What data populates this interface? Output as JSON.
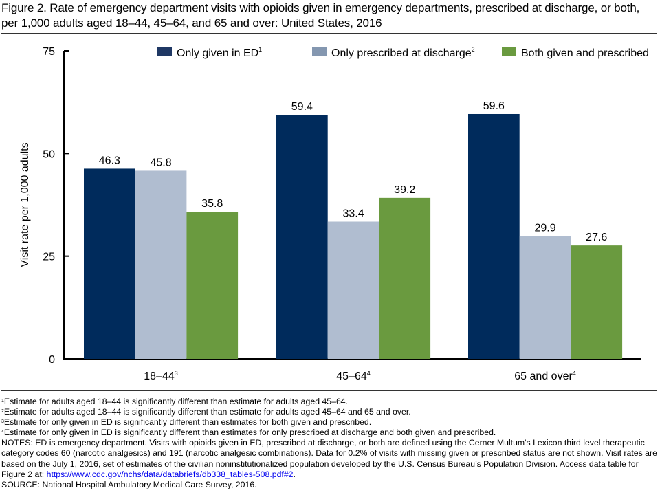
{
  "figure": {
    "title": "Figure 2. Rate of emergency department visits with opioids given in emergency departments, prescribed at discharge, or both, per 1,000 adults aged 18–44, 45–64, and 65 and over: United States, 2016"
  },
  "chart_data": {
    "type": "bar",
    "title": "Figure 2. Rate of emergency department visits with opioids given in emergency departments, prescribed at discharge, or both, per 1,000 adults aged 18–44, 45–64, and 65 and over: United States, 2016",
    "xlabel": "",
    "ylabel": "Visit rate per 1,000 adults",
    "ylim": [
      0,
      75
    ],
    "yticks": [
      0,
      25,
      50,
      75
    ],
    "grid": false,
    "legend_position": "top-right",
    "categories": [
      {
        "label": "18–44",
        "sup": "3"
      },
      {
        "label": "45–64",
        "sup": "4"
      },
      {
        "label": "65 and over",
        "sup": "4"
      }
    ],
    "series": [
      {
        "name": "Only given in ED",
        "sup": "1",
        "color": "#002B5C",
        "legend_color": "#1F3864",
        "values": [
          46.3,
          59.4,
          59.6
        ]
      },
      {
        "name": "Only prescribed at discharge",
        "sup": "2",
        "color": "#B0BDD0",
        "legend_color": "#8497B0",
        "values": [
          45.8,
          33.4,
          29.9
        ]
      },
      {
        "name": "Both given and prescribed",
        "sup": "",
        "color": "#6A9A3F",
        "legend_color": "#6A9A3F",
        "values": [
          35.8,
          39.2,
          27.6
        ]
      }
    ],
    "data_labels": [
      [
        "46.3",
        "59.4",
        "59.6"
      ],
      [
        "45.8",
        "33.4",
        "29.9"
      ],
      [
        "35.8",
        "39.2",
        "27.6"
      ]
    ]
  },
  "notes": {
    "footnotes": [
      {
        "sup": "1",
        "text": "Estimate for adults aged 18–44 is significantly different than estimate for adults aged 45–64."
      },
      {
        "sup": "2",
        "text": "Estimate for adults aged 18–44 is significantly different than estimate for adults aged 45–64 and 65 and over."
      },
      {
        "sup": "3",
        "text": "Estimate for only given in ED is significantly different than estimates for both given and prescribed."
      },
      {
        "sup": "4",
        "text": "Estimate for only given in ED is significantly different than estimates for only prescribed at discharge and both given and prescribed."
      }
    ],
    "notes_text": "NOTES: ED is emergency department. Visits with opioids given in ED, prescribed at discharge, or both are defined using the Cerner Multum's Lexicon third level therapeutic category codes 60 (narcotic analgesics) and 191 (narcotic analgesic combinations). Data for 0.2% of visits with missing given or prescribed status are not shown. Visit rates are based on the July 1, 2016, set of estimates of the civilian noninstitutionalized population developed by the U.S. Census Bureau’s Population Division. Access data table for Figure 2 at: ",
    "link_text": "https://www.cdc.gov/nchs/data/databriefs/db338_tables-508.pdf#2",
    "link_after": ".",
    "source": "SOURCE: National Hospital Ambulatory Medical Care Survey, 2016."
  }
}
